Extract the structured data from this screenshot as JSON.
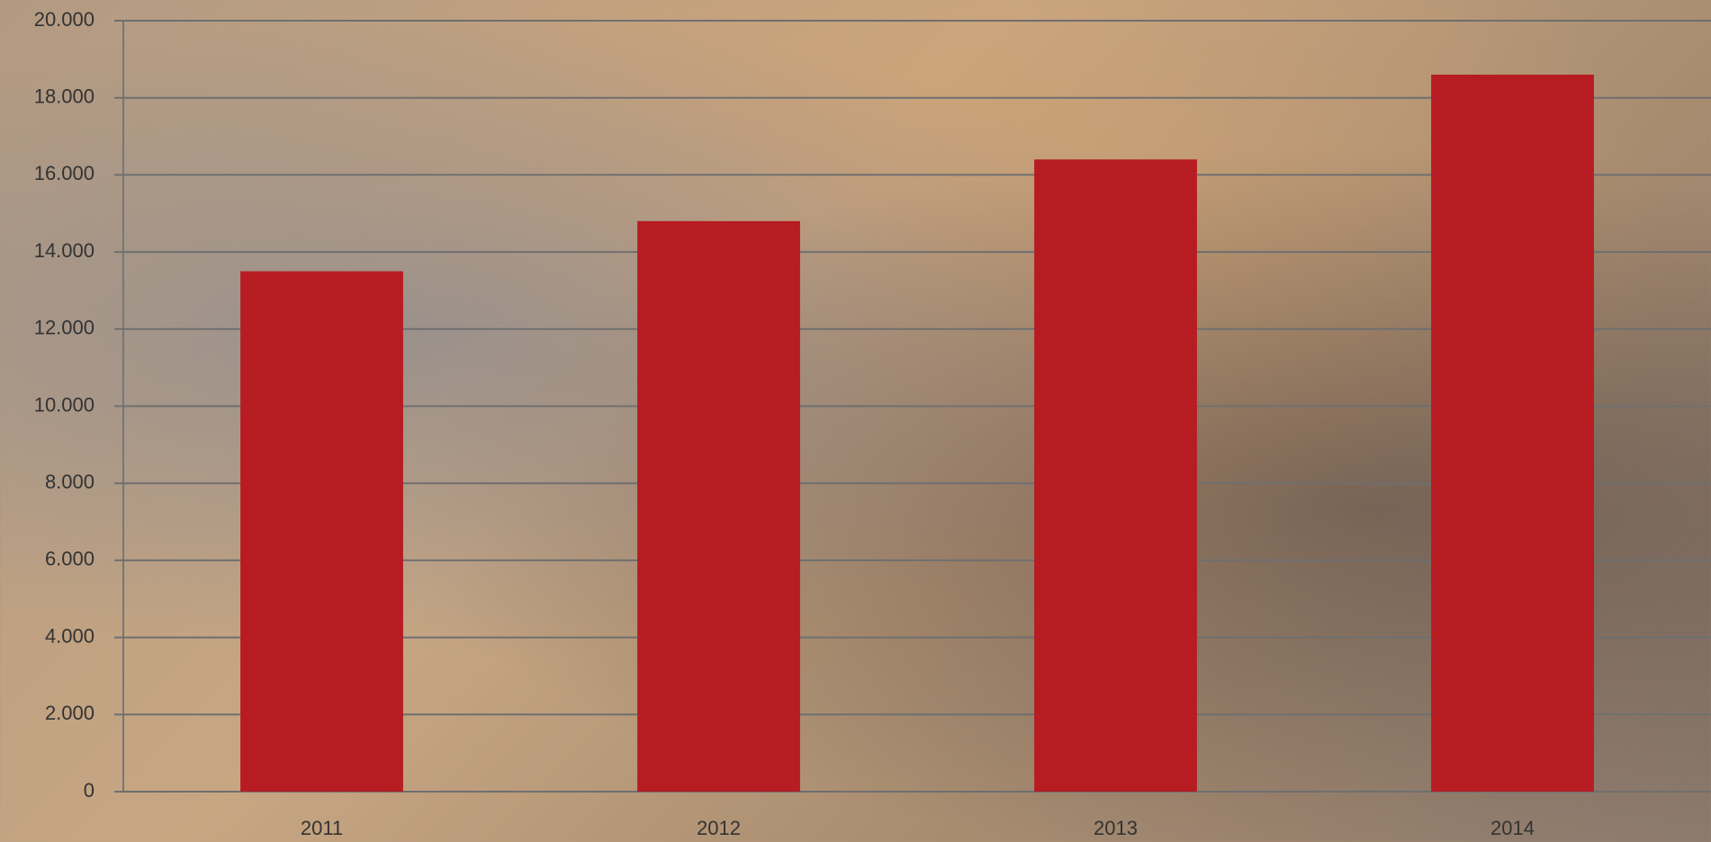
{
  "chart_data": {
    "type": "bar",
    "categories": [
      "2011",
      "2012",
      "2013",
      "2014"
    ],
    "values": [
      13500,
      14800,
      16400,
      18600
    ],
    "color": "#b71c23",
    "ylim": [
      0,
      20000
    ],
    "yticks": [
      0,
      {
        "value": 2000,
        "label": "2.000"
      },
      {
        "value": 4000,
        "label": "4.000"
      },
      {
        "value": 6000,
        "label": "6.000"
      },
      {
        "value": 8000,
        "label": "8.000"
      },
      {
        "value": 10000,
        "label": "10.000"
      },
      {
        "value": 12000,
        "label": "12.000"
      },
      {
        "value": 14000,
        "label": "14.000"
      },
      {
        "value": 16000,
        "label": "16.000"
      },
      {
        "value": 18000,
        "label": "18.000"
      },
      {
        "value": 20000,
        "label": "20.000"
      }
    ],
    "grid": true
  }
}
